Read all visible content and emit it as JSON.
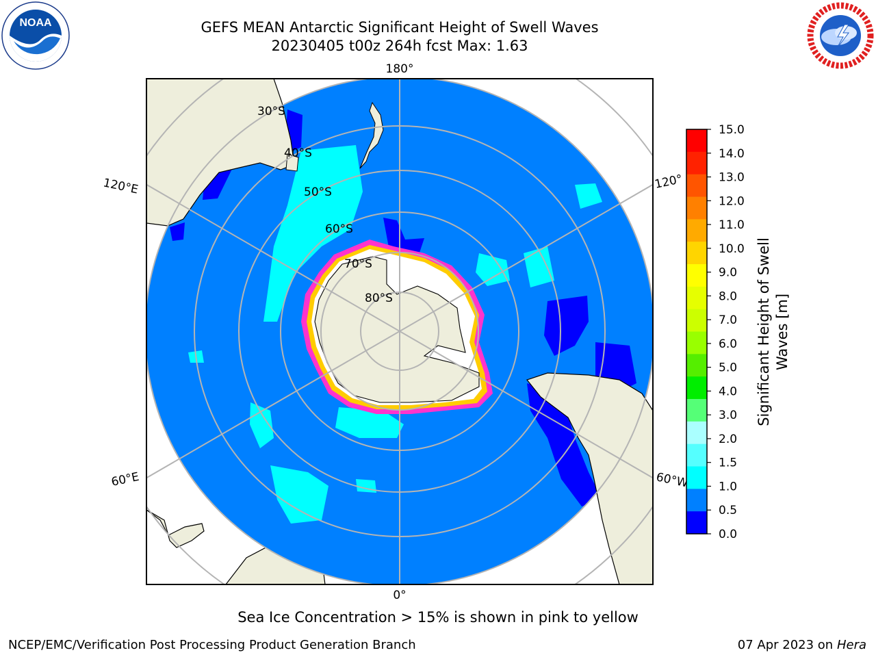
{
  "header": {
    "title_line1": "GEFS MEAN Antarctic Significant Height of Swell Waves",
    "title_line2": "20230405 t00z 264h fcst   Max: 1.63"
  },
  "logos": {
    "left": {
      "name": "noaa-logo",
      "text": "NOAA",
      "ring_text": "NATIONAL OCEANIC AND ATMOSPHERIC ADMINISTRATION · U.S. DEPARTMENT OF COMMERCE"
    },
    "right": {
      "name": "nws-logo",
      "ring_text": "NATIONAL WEATHER SERVICE"
    }
  },
  "map": {
    "projection": "south polar stereographic",
    "longitude_labels": {
      "top": "180°",
      "bottom": "0°",
      "upper_left": "120°E",
      "upper_right": "120°",
      "lower_left": "60°E",
      "lower_right": "60°W"
    },
    "latitude_labels": [
      "30°S",
      "40°S",
      "50°S",
      "60°S",
      "70°S",
      "80°S"
    ],
    "colors": {
      "ocean_0_5_1": "#0080ff",
      "wave_0_0_5": "#0000ff",
      "wave_1_1_5": "#00ffff",
      "wave_1_5_2": "#55ffff",
      "land": "#eeeedc",
      "ice": "#ffffff",
      "ice_edge_pink": "#ff33cc",
      "ice_edge_yellow": "#ffcc00",
      "grid": "#b4b4b4"
    }
  },
  "colorbar": {
    "label_line1": "Significant Height of Swell",
    "label_line2": "Waves [m]",
    "ticks": [
      "15.0",
      "14.0",
      "13.0",
      "12.0",
      "11.0",
      "10.0",
      "9.0",
      "8.0",
      "7.0",
      "6.0",
      "5.0",
      "4.0",
      "3.0",
      "2.0",
      "1.5",
      "1.0",
      "0.5",
      "0.0"
    ],
    "colors_top_to_bottom": [
      "#ff0000",
      "#ff2200",
      "#ff5500",
      "#ff8000",
      "#ffaa00",
      "#ffd500",
      "#ffff00",
      "#e6ff00",
      "#ccff00",
      "#99ff00",
      "#55ee00",
      "#00ee00",
      "#55ff77",
      "#aaffff",
      "#55ffff",
      "#00ffff",
      "#0080ff",
      "#0000ff"
    ]
  },
  "footer": {
    "subtitle": "Sea Ice Concentration > 15% is shown in pink to yellow",
    "credit": "NCEP/EMC/Verification Post Processing Product Generation Branch",
    "date": "07 Apr 2023 on",
    "host": "Hera"
  }
}
